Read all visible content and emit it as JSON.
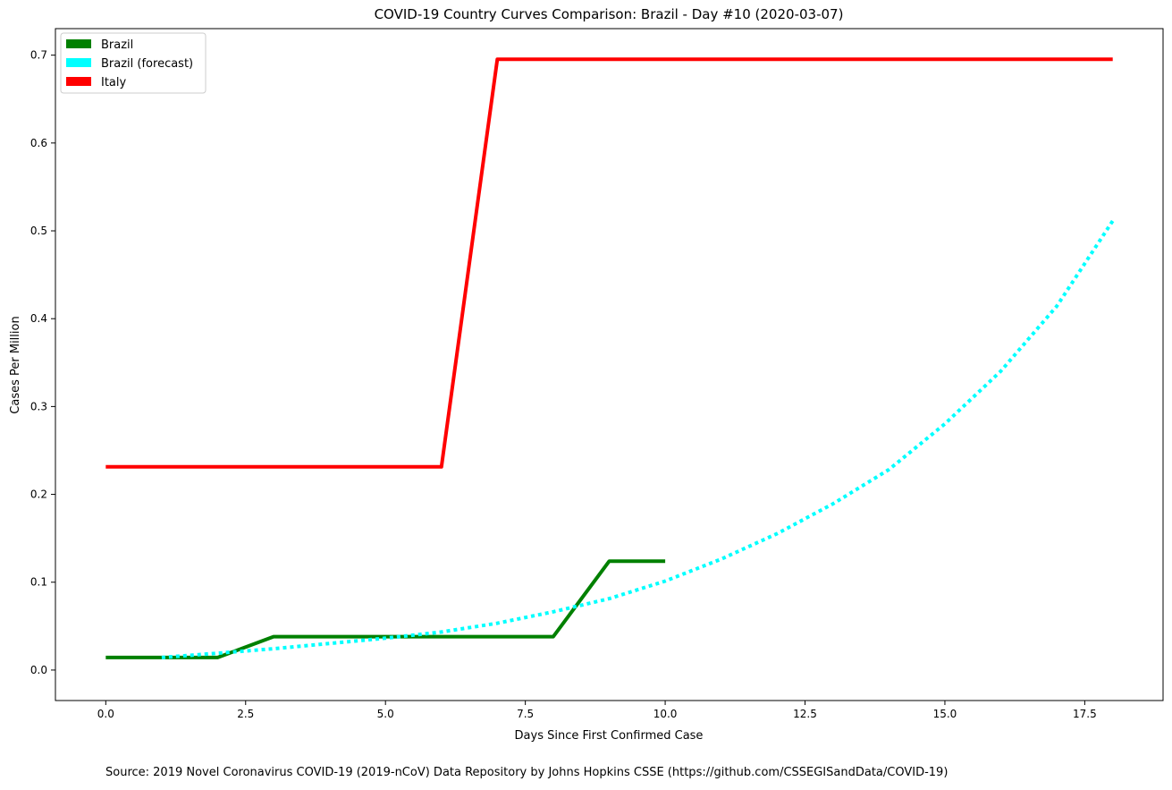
{
  "chart_data": {
    "type": "line",
    "title": "COVID-19 Country Curves Comparison: Brazil - Day #10 (2020-03-07)",
    "xlabel": "Days Since First Confirmed Case",
    "ylabel": "Cases Per Million",
    "xlim": [
      -0.9,
      18.9
    ],
    "ylim": [
      -0.0347,
      0.7302
    ],
    "xticks": [
      0.0,
      2.5,
      5.0,
      7.5,
      10.0,
      12.5,
      15.0,
      17.5
    ],
    "xtick_labels": [
      "0.0",
      "2.5",
      "5.0",
      "7.5",
      "10.0",
      "12.5",
      "15.0",
      "17.5"
    ],
    "yticks": [
      0.0,
      0.1,
      0.2,
      0.3,
      0.4,
      0.5,
      0.6,
      0.7
    ],
    "ytick_labels": [
      "0.0",
      "0.1",
      "0.2",
      "0.3",
      "0.4",
      "0.5",
      "0.6",
      "0.7"
    ],
    "grid": false,
    "legend_position": "top-left",
    "series": [
      {
        "name": "Brazil",
        "color": "#008000",
        "style": "solid",
        "x": [
          0,
          1,
          2,
          3,
          4,
          5,
          6,
          7,
          8,
          9,
          10
        ],
        "y": [
          0.0143,
          0.0143,
          0.0143,
          0.038,
          0.038,
          0.038,
          0.038,
          0.038,
          0.038,
          0.124,
          0.124
        ]
      },
      {
        "name": "Brazil (forecast)",
        "color": "#00ffff",
        "style": "dotted",
        "x": [
          1,
          2,
          3,
          4,
          5,
          6,
          7,
          8,
          9,
          10,
          11,
          12,
          13,
          14,
          15,
          16,
          17,
          18
        ],
        "y": [
          0.0143,
          0.0192,
          0.0243,
          0.0303,
          0.0363,
          0.0433,
          0.0533,
          0.0663,
          0.0813,
          0.1013,
          0.1263,
          0.1553,
          0.1893,
          0.2283,
          0.2803,
          0.3403,
          0.4143,
          0.5113
        ]
      },
      {
        "name": "Italy",
        "color": "#ff0000",
        "style": "solid",
        "x": [
          0,
          1,
          2,
          3,
          4,
          5,
          6,
          7,
          8,
          9,
          10,
          11,
          12,
          13,
          14,
          15,
          16,
          17,
          18
        ],
        "y": [
          0.2313,
          0.2313,
          0.2313,
          0.2313,
          0.2313,
          0.2313,
          0.2313,
          0.6953,
          0.6953,
          0.6953,
          0.6953,
          0.6953,
          0.6953,
          0.6953,
          0.6953,
          0.6953,
          0.6953,
          0.6953,
          0.6953
        ]
      }
    ]
  },
  "source_text": "Source: 2019 Novel Coronavirus COVID-19 (2019-nCoV) Data Repository by Johns Hopkins CSSE (https://github.com/CSSEGISandData/COVID-19)"
}
